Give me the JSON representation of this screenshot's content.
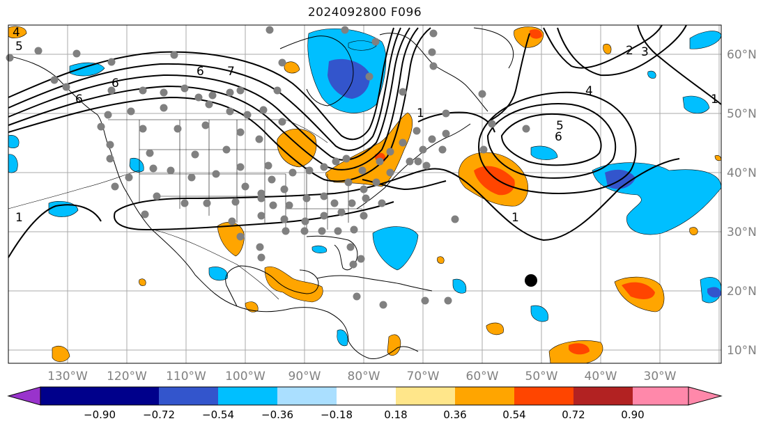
{
  "title": "2024092800 F096",
  "map": {
    "longitude_labels": [
      "130°W",
      "120°W",
      "110°W",
      "100°W",
      "90°W",
      "80°W",
      "70°W",
      "60°W",
      "50°W",
      "40°W",
      "30°W"
    ],
    "latitude_labels": [
      "60°N",
      "50°N",
      "40°N",
      "30°N",
      "20°N",
      "10°N"
    ],
    "contour_labels": [
      "4",
      "5",
      "6",
      "6",
      "6",
      "7",
      "1",
      "2",
      "3",
      "4",
      "5",
      "6",
      "1",
      "1",
      "1"
    ],
    "marker": "storm-position-dot"
  },
  "colorbar": {
    "tick_labels": [
      "−0.90",
      "−0.72",
      "−0.54",
      "−0.36",
      "−0.18",
      "0.18",
      "0.36",
      "0.54",
      "0.72",
      "0.90"
    ],
    "colors": [
      "#9933cc",
      "#00008b",
      "#3355cc",
      "#00bfff",
      "#aadfff",
      "#ffffff",
      "#ffe68a",
      "#ffa500",
      "#ff4500",
      "#b22222",
      "#ff88aa"
    ]
  },
  "colors": {
    "negative_light": "#00bfff",
    "negative_mid": "#3355cc",
    "positive_light": "#ffa500",
    "positive_mid": "#ff4500",
    "station_dot": "#808080",
    "contour": "#000000"
  }
}
